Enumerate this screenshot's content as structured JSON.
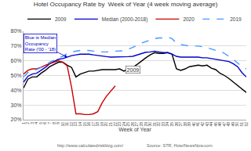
{
  "chart_data": {
    "type": "line",
    "title": "Hotel Occupancy Rate by  Week of Year (4 week moving average)",
    "xlabel": "Week of Year",
    "x": [
      1,
      2,
      3,
      4,
      5,
      6,
      7,
      8,
      9,
      10,
      11,
      12,
      13,
      14,
      15,
      16,
      17,
      18,
      19,
      20,
      21,
      22,
      23,
      24,
      25,
      26,
      27,
      28,
      29,
      30,
      31,
      32,
      33,
      34,
      35,
      36,
      37,
      38,
      39,
      40,
      41,
      42,
      43,
      44,
      45,
      46,
      47,
      48,
      49,
      50,
      51,
      52
    ],
    "series": [
      {
        "name": "2009",
        "color": "#000000",
        "line_style": "solid",
        "values": [
          0.415,
          0.475,
          0.49,
          0.49,
          0.515,
          0.535,
          0.56,
          0.575,
          0.59,
          0.59,
          0.57,
          0.555,
          0.49,
          0.51,
          0.52,
          0.53,
          0.53,
          0.535,
          0.54,
          0.54,
          0.54,
          0.54,
          0.545,
          0.53,
          0.545,
          0.555,
          0.575,
          0.6,
          0.62,
          0.64,
          0.655,
          0.65,
          0.65,
          0.655,
          0.645,
          0.545,
          0.535,
          0.545,
          0.56,
          0.565,
          0.57,
          0.565,
          0.57,
          0.55,
          0.54,
          0.515,
          0.5,
          0.48,
          0.455,
          0.43,
          0.405,
          0.385
        ]
      },
      {
        "name": "Median (2000-2018)",
        "color": "#0000cc",
        "line_style": "solid",
        "values": [
          0.455,
          0.495,
          0.51,
          0.515,
          0.535,
          0.555,
          0.58,
          0.595,
          0.61,
          0.615,
          0.625,
          0.635,
          0.64,
          0.645,
          0.645,
          0.645,
          0.64,
          0.635,
          0.63,
          0.628,
          0.625,
          0.625,
          0.628,
          0.625,
          0.628,
          0.63,
          0.64,
          0.65,
          0.658,
          0.66,
          0.665,
          0.66,
          0.655,
          0.655,
          0.645,
          0.63,
          0.625,
          0.625,
          0.625,
          0.625,
          0.625,
          0.62,
          0.62,
          0.615,
          0.61,
          0.605,
          0.6,
          0.595,
          0.58,
          0.56,
          0.52,
          0.49
        ]
      },
      {
        "name": "2020",
        "color": "#cc0000",
        "line_style": "solid",
        "values": [
          0.51,
          0.535,
          0.545,
          0.545,
          0.555,
          0.57,
          0.58,
          0.59,
          0.6,
          0.59,
          0.565,
          0.42,
          0.24,
          0.24,
          0.235,
          0.235,
          0.24,
          0.255,
          0.315,
          0.36,
          0.395,
          0.43,
          null,
          null,
          null,
          null,
          null,
          null,
          null,
          null,
          null,
          null,
          null,
          null,
          null,
          null,
          null,
          null,
          null,
          null,
          null,
          null,
          null,
          null,
          null,
          null,
          null,
          null,
          null,
          null,
          null,
          null
        ]
      },
      {
        "name": "2019",
        "color": "#4499ff",
        "line_style": "dashed",
        "values": [
          0.49,
          0.52,
          0.53,
          0.54,
          0.555,
          0.57,
          0.59,
          0.605,
          0.62,
          0.63,
          0.65,
          0.66,
          0.665,
          0.67,
          0.67,
          0.67,
          0.665,
          0.66,
          0.66,
          0.66,
          0.66,
          0.665,
          0.665,
          0.668,
          0.68,
          0.69,
          0.705,
          0.72,
          0.73,
          0.74,
          0.75,
          0.755,
          0.755,
          0.76,
          0.75,
          0.72,
          0.71,
          0.705,
          0.7,
          0.7,
          0.7,
          0.695,
          0.69,
          0.68,
          0.67,
          0.665,
          0.65,
          0.63,
          0.61,
          0.585,
          0.56,
          0.545
        ]
      }
    ],
    "xlim": [
      1,
      52
    ],
    "xticks": [
      1,
      2,
      3,
      4,
      5,
      6,
      7,
      8,
      9,
      10,
      11,
      12,
      13,
      14,
      15,
      16,
      17,
      18,
      19,
      20,
      21,
      22,
      23,
      24,
      25,
      26,
      27,
      28,
      29,
      30,
      31,
      32,
      33,
      34,
      35,
      36,
      37,
      38,
      39,
      40,
      41,
      42,
      43,
      44,
      45,
      46,
      47,
      48,
      49,
      50,
      51,
      52
    ],
    "ylim": [
      0.2,
      0.8
    ],
    "yticks": [
      {
        "value": 0.2,
        "label": "20%"
      },
      {
        "value": 0.3,
        "label": "30%"
      },
      {
        "value": 0.4,
        "label": "40%"
      },
      {
        "value": 0.5,
        "label": "50%"
      },
      {
        "value": 0.6,
        "label": "60%"
      },
      {
        "value": 0.7,
        "label": "70%"
      },
      {
        "value": 0.8,
        "label": "80%"
      }
    ],
    "grid": true,
    "legend": "top",
    "annotations": [
      "Blue is Median\nOccupancy\nRate ('00 - '18)",
      "2009",
      "http://www.calculatedriskblog.com/",
      "Source: STR, HotelNewsNow.com"
    ]
  }
}
